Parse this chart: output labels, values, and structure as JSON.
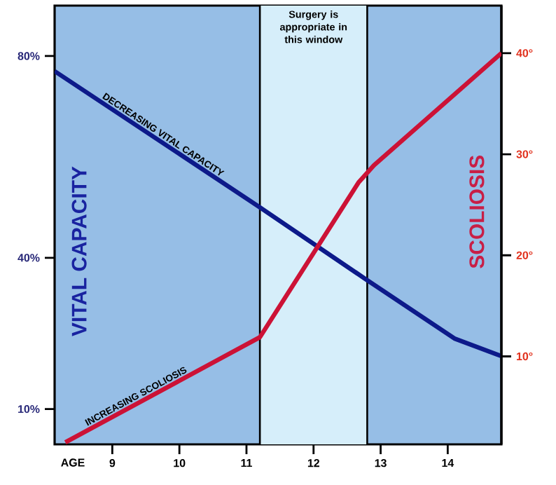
{
  "chart_data": {
    "type": "line",
    "xlabel": "AGE",
    "ylabel": "VITAL CAPACITY",
    "y2label": "SCOLIOSIS",
    "xlim": [
      8.14,
      14.8
    ],
    "xticks": [
      9,
      10,
      11,
      12,
      13,
      14
    ],
    "ylim": [
      3,
      90
    ],
    "yticks": [
      {
        "value": 10,
        "label": "10%"
      },
      {
        "value": 40,
        "label": "40%"
      },
      {
        "value": 80,
        "label": "80%"
      }
    ],
    "y2lim": [
      1.3,
      44.7
    ],
    "y2ticks": [
      {
        "value": 10,
        "label": "10°"
      },
      {
        "value": 20,
        "label": "20°"
      },
      {
        "value": 30,
        "label": "30°"
      },
      {
        "value": 40,
        "label": "40°"
      }
    ],
    "series": [
      {
        "name": "DECREASING VITAL CAPACITY",
        "color": "#0d1a8a",
        "x": [
          8.14,
          11.2,
          12.75,
          14.1,
          14.8
        ],
        "values": [
          77,
          50,
          36,
          24,
          20.5
        ]
      },
      {
        "name": "INCREASING SCOLIOSIS",
        "color": "#cc1236",
        "axis": "y2",
        "x": [
          8.3,
          11.2,
          12.67,
          12.9,
          14.8
        ],
        "values": [
          1.5,
          11.9,
          27.2,
          28.9,
          40
        ]
      }
    ],
    "ref_lines": [
      {
        "axis": "x",
        "value": 11.2,
        "color": "#000000"
      },
      {
        "axis": "x",
        "value": 12.8,
        "color": "#000000"
      }
    ],
    "bands": [
      {
        "axis": "x",
        "from": 11.2,
        "to": 12.8,
        "label": "Surgery is appropriate in this window",
        "color": "#d6eefa"
      }
    ],
    "grid": false,
    "marker": "none",
    "line_style": "solid"
  }
}
